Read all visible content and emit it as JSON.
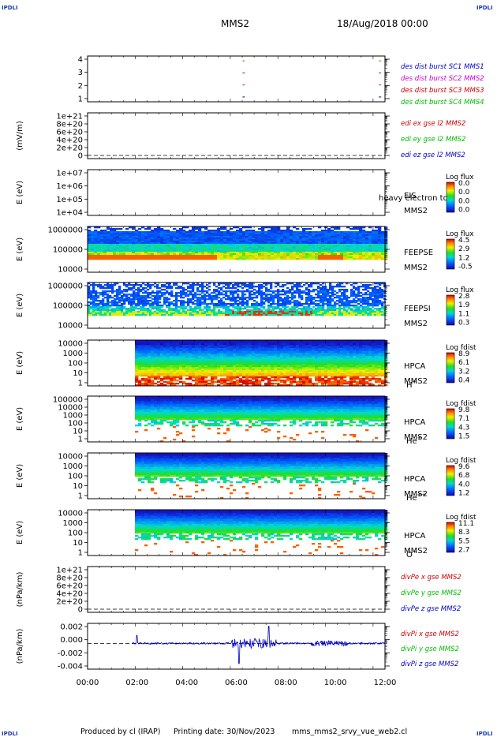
{
  "header": {
    "corner_label": "IPDLI",
    "spacecraft": "MMS2",
    "date_time": "18/Aug/2018 00:00"
  },
  "footer": {
    "produced_by": "Produced by cl (IRAP)",
    "printing_date": "Printing date: 30/Nov/2023",
    "script": "mms_mms2_srvy_vue_web2.cl"
  },
  "time_axis": {
    "ticks": [
      "00:00",
      "02:00",
      "04:00",
      "06:00",
      "08:00",
      "10:00",
      "12:00"
    ],
    "range_hours": [
      0,
      12
    ]
  },
  "colors": {
    "blue": "#0000cc",
    "magenta": "#cc00cc",
    "red": "#cc0000",
    "green": "#00bb00"
  },
  "chart_data": [
    {
      "id": "des-dist",
      "type": "scatter",
      "yticks": [
        "1",
        "2",
        "3",
        "4"
      ],
      "ylim": [
        0.6,
        4.4
      ],
      "series": [
        {
          "name": "des dist burst SC1 MMS1",
          "color": "#0000cc",
          "x": [
            6.3,
            11.8
          ],
          "y": [
            1,
            1
          ]
        },
        {
          "name": "des dist burst SC2 MMS2",
          "color": "#cc00cc",
          "x": [
            6.3,
            11.8
          ],
          "y": [
            2,
            2
          ]
        },
        {
          "name": "des dist burst SC3 MMS3",
          "color": "#cc0000",
          "x": [
            6.3,
            11.8
          ],
          "y": [
            3,
            3
          ]
        },
        {
          "name": "des dist burst SC4 MMS4",
          "color": "#00bb00",
          "x": [
            6.3,
            11.8
          ],
          "y": [
            4,
            4
          ]
        }
      ]
    },
    {
      "id": "edi-e",
      "type": "line",
      "ylabel": "(mV/m)",
      "yticks": [
        "0",
        "2e+20",
        "4e+20",
        "6e+20",
        "8e+20",
        "1e+21"
      ],
      "series": [
        {
          "name": "edi ex gse l2 MMS2",
          "color": "#cc0000"
        },
        {
          "name": "edi ey gse l2 MMS2",
          "color": "#00bb00"
        },
        {
          "name": "edi ez gse l2 MMS2",
          "color": "#0000cc"
        }
      ]
    },
    {
      "id": "eis",
      "type": "heatmap",
      "ylabel": "E (eV)",
      "yticks": [
        "1e+04",
        "1e+05",
        "1e+06",
        "1e+07"
      ],
      "instrument": [
        "EIS",
        "MMS2"
      ],
      "overlay": "heavy electron to",
      "colorbar": {
        "title": "Log flux",
        "labels": [
          "0.0",
          "0.0",
          "0.0",
          "0.0"
        ]
      }
    },
    {
      "id": "feeps-e",
      "type": "heatmap",
      "ylabel": "E (eV)",
      "yticks": [
        "10000",
        "100000",
        "1000000"
      ],
      "instrument": [
        "FEEPSE",
        "MMS2"
      ],
      "colorbar": {
        "title": "Log flux",
        "labels": [
          "4.5",
          "2.9",
          "1.2",
          "-0.5"
        ]
      }
    },
    {
      "id": "feeps-i",
      "type": "heatmap",
      "ylabel": "E (eV)",
      "yticks": [
        "10000",
        "100000",
        "1000000"
      ],
      "instrument": [
        "FEEPSI",
        "MMS2"
      ],
      "colorbar": {
        "title": "Log flux",
        "labels": [
          "2.8",
          "1.9",
          "1.1",
          "0.3"
        ]
      }
    },
    {
      "id": "hpca-h",
      "type": "heatmap",
      "ylabel": "E (eV)",
      "yticks": [
        "1",
        "10",
        "100",
        "1000",
        "10000"
      ],
      "instrument": [
        "HPCA",
        "MMS2"
      ],
      "species": "H",
      "charge": "+",
      "colorbar": {
        "title": "Log fdist",
        "labels": [
          "8.9",
          "6.1",
          "3.2",
          "0.4"
        ]
      }
    },
    {
      "id": "hpca-he",
      "type": "heatmap",
      "ylabel": "E (eV)",
      "yticks": [
        "1",
        "10",
        "100",
        "1000",
        "10000",
        "100000"
      ],
      "instrument": [
        "HPCA",
        "MMS2"
      ],
      "species": "He",
      "charge": "+",
      "colorbar": {
        "title": "Log fdist",
        "labels": [
          "9.8",
          "7.1",
          "4.3",
          "1.5"
        ]
      }
    },
    {
      "id": "hpca-hepp",
      "type": "heatmap",
      "ylabel": "E (eV)",
      "yticks": [
        "1",
        "10",
        "100",
        "1000",
        "10000"
      ],
      "instrument": [
        "HPCA",
        "MMS2"
      ],
      "species": "He",
      "charge": "++",
      "colorbar": {
        "title": "Log fdist",
        "labels": [
          "9.6",
          "6.8",
          "4.0",
          "1.2"
        ]
      }
    },
    {
      "id": "hpca-o",
      "type": "heatmap",
      "ylabel": "E (eV)",
      "yticks": [
        "1",
        "10",
        "100",
        "1000",
        "10000"
      ],
      "instrument": [
        "HPCA",
        "MMS2"
      ],
      "species": "O",
      "charge": "+",
      "colorbar": {
        "title": "Log fdist",
        "labels": [
          "11.1",
          "8.3",
          "5.5",
          "2.7"
        ]
      }
    },
    {
      "id": "divpe",
      "type": "line",
      "ylabel": "(nPa/km)",
      "yticks": [
        "0",
        "2e+20",
        "4e+20",
        "6e+20",
        "8e+20",
        "1e+21"
      ],
      "series": [
        {
          "name": "divPe x gse MMS2",
          "color": "#cc0000"
        },
        {
          "name": "divPe y gse MMS2",
          "color": "#00bb00"
        },
        {
          "name": "divPe z gse MMS2",
          "color": "#0000cc"
        }
      ]
    },
    {
      "id": "divpi",
      "type": "line",
      "ylabel": "(nPa/km)",
      "yticks": [
        "-0.004",
        "-0.002",
        "0.000",
        "0.002"
      ],
      "ylim": [
        -0.0045,
        0.0035
      ],
      "series": [
        {
          "name": "divPi x gse MMS2",
          "color": "#cc0000"
        },
        {
          "name": "divPi y gse MMS2",
          "color": "#00bb00"
        },
        {
          "name": "divPi z gse MMS2",
          "color": "#0000cc"
        }
      ]
    }
  ]
}
